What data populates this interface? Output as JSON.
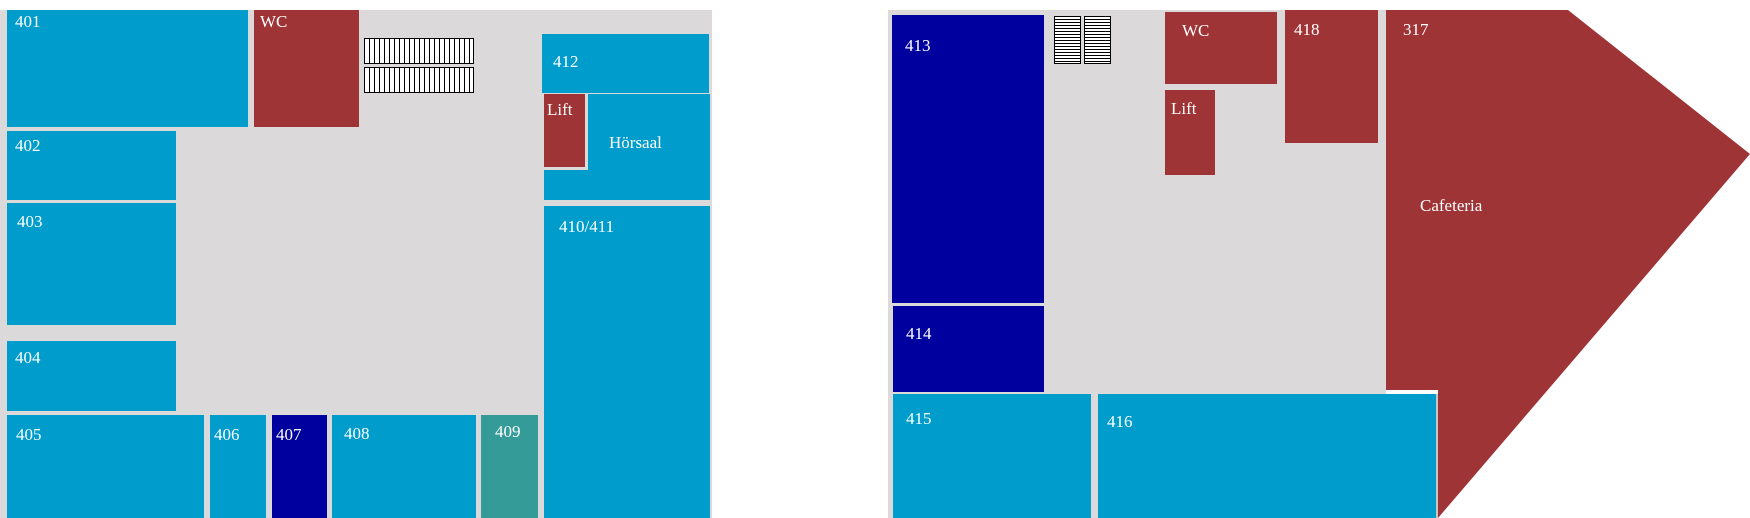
{
  "colors": {
    "corridor": "#dbd9da",
    "room_blue": "#009ccb",
    "room_navy": "#00009e",
    "room_red": "#9e3436",
    "room_teal": "#349b99"
  },
  "left_wing": {
    "rooms": {
      "r401": "401",
      "wc": "WC",
      "r402": "402",
      "r403": "403",
      "r404": "404",
      "r405": "405",
      "r406": "406",
      "r407": "407",
      "r408": "408",
      "r409": "409",
      "r412": "412",
      "lift": "Lift",
      "hoersaal": "Hörsaal",
      "r410_411": "410/411"
    }
  },
  "right_wing": {
    "rooms": {
      "r413": "413",
      "r414": "414",
      "wc": "WC",
      "lift": "Lift",
      "r418": "418",
      "r317": "317",
      "cafeteria": "Cafeteria",
      "r415": "415",
      "r416": "416"
    }
  }
}
